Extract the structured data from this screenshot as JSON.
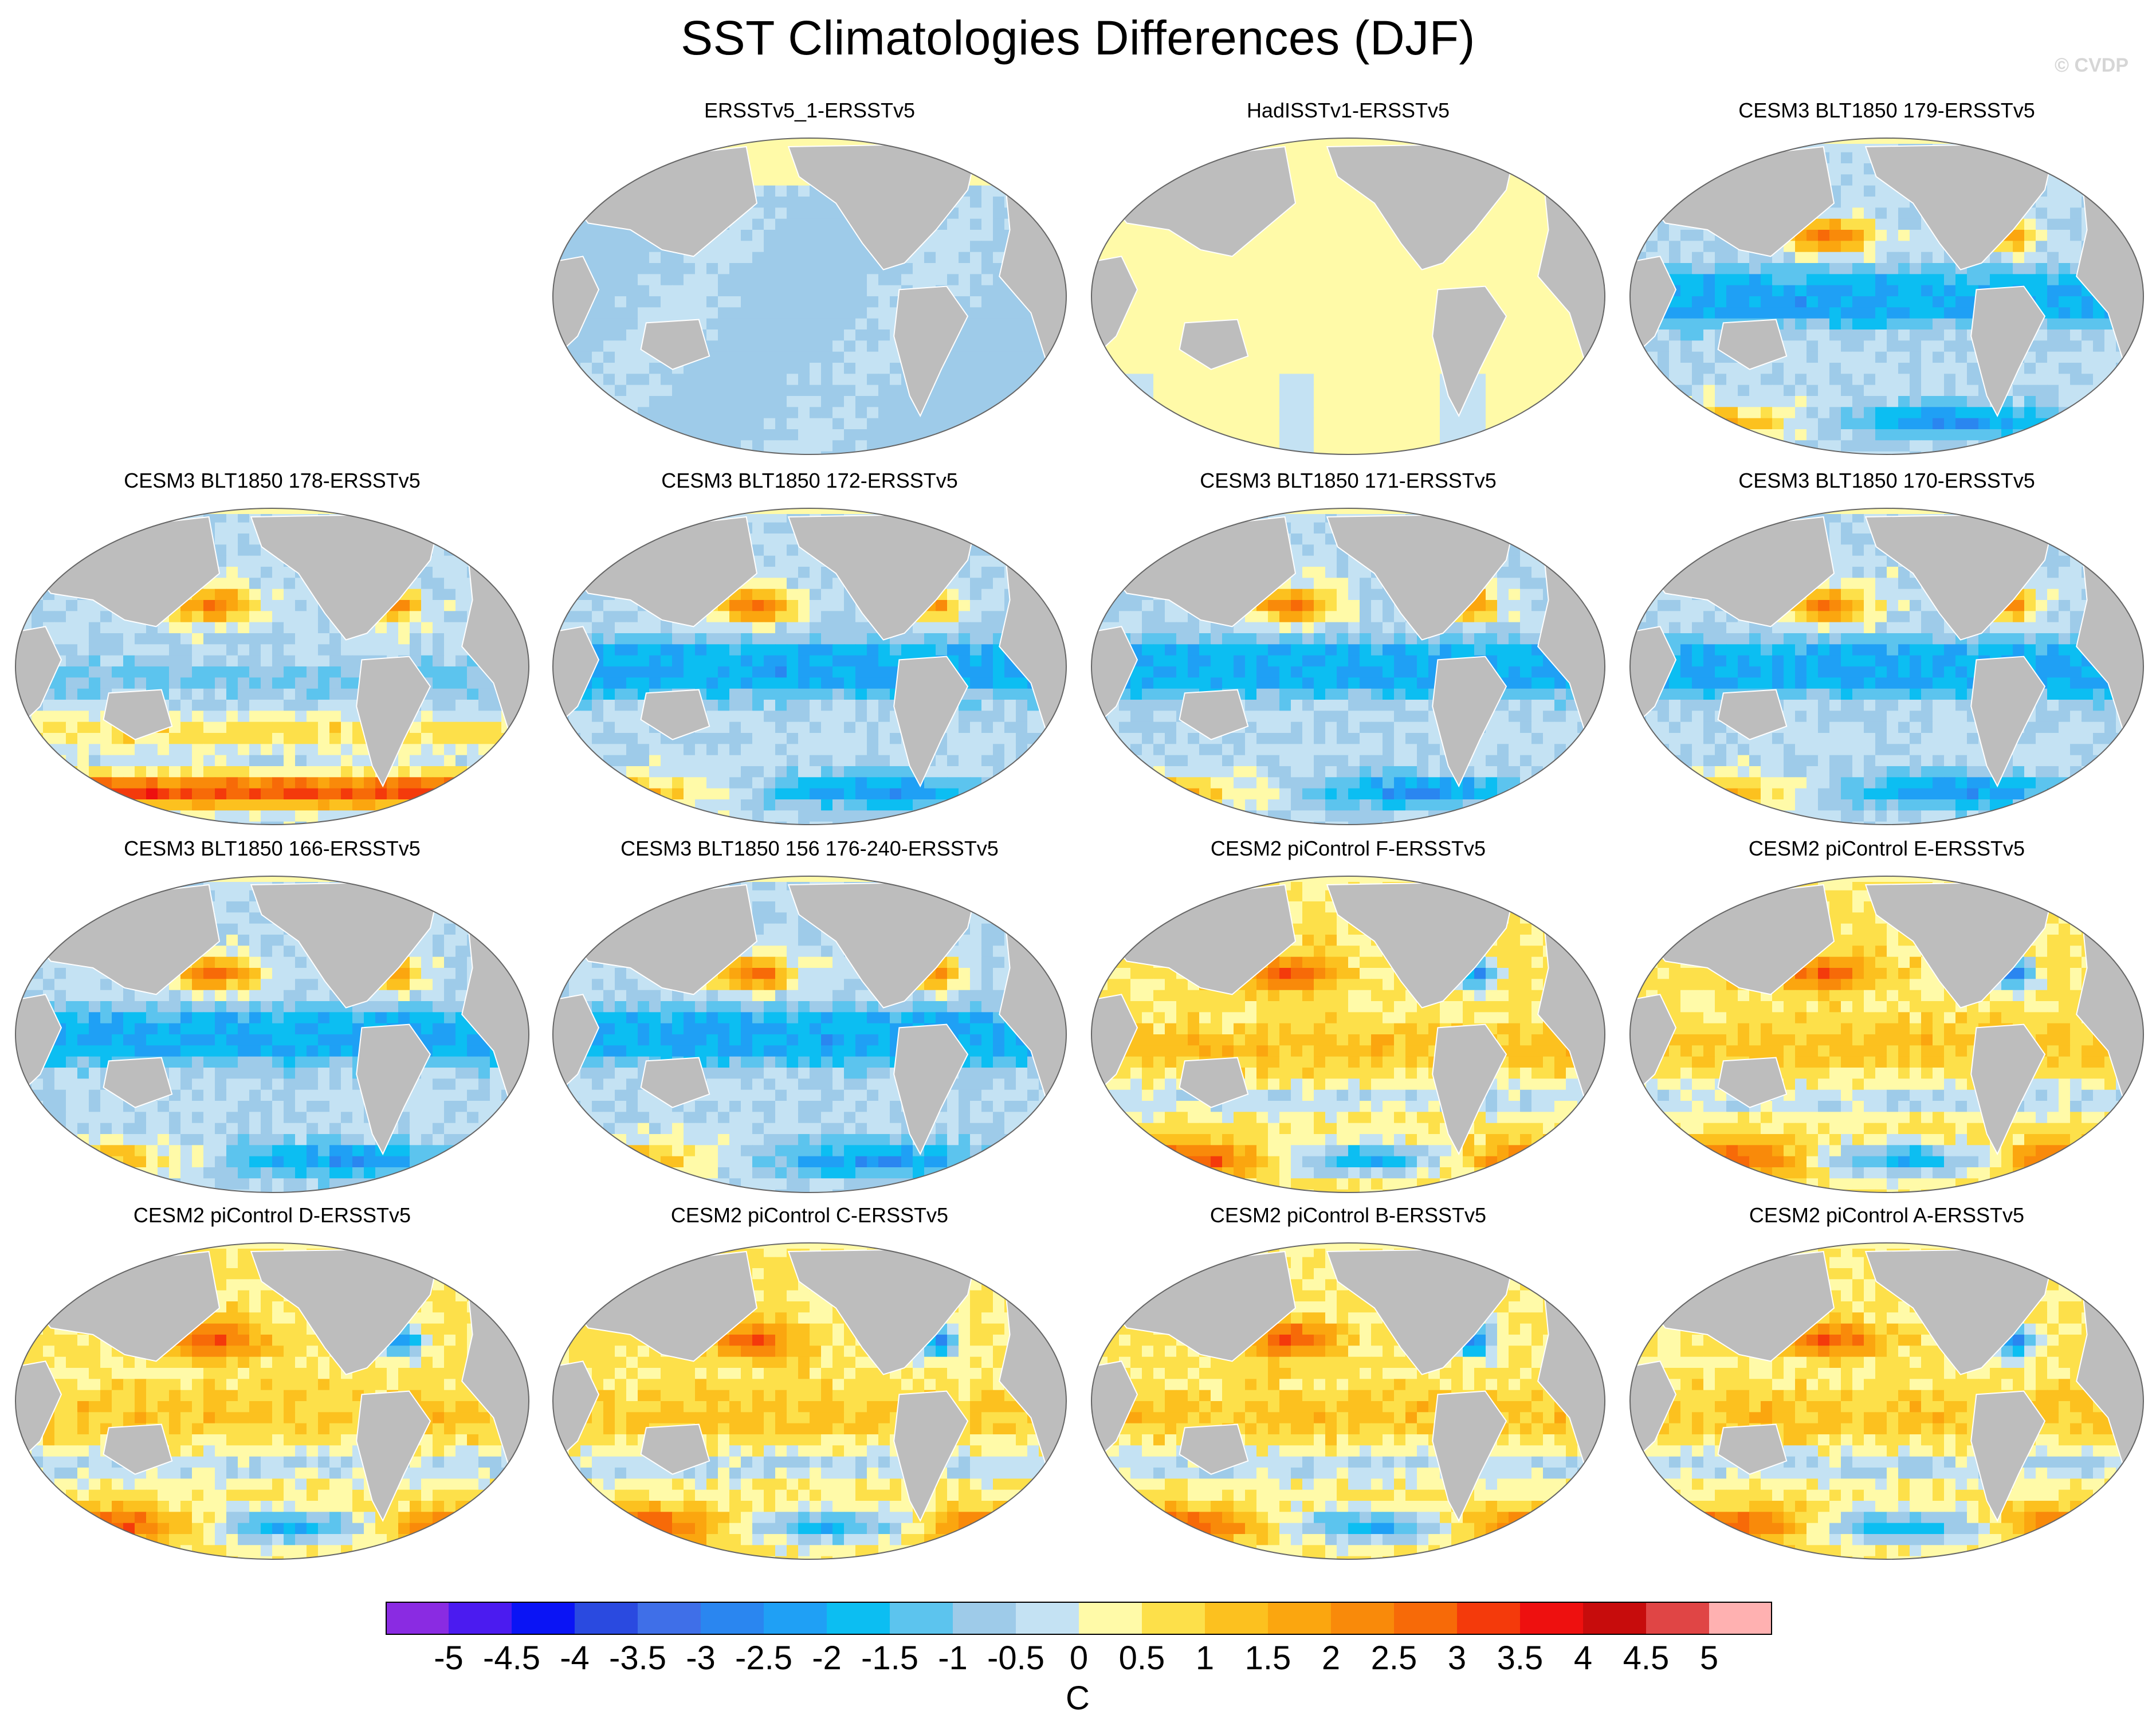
{
  "title": "SST Climatologies Differences (DJF)",
  "watermark": "© CVDP",
  "colors": {
    "land": "#bdbdbd",
    "ocean_outline": "#666666"
  },
  "panels": [
    {
      "title": "ERSSTv5_1-ERSSTv5",
      "mode": "cool_uniform"
    },
    {
      "title": "HadISSTv1-ERSSTv5",
      "mode": "warm_uniform"
    },
    {
      "title": "CESM3 BLT1850 179-ERSSTv5",
      "mode": "cesm3"
    },
    {
      "title": "CESM3 BLT1850 178-ERSSTv5",
      "mode": "cesm3_warm"
    },
    {
      "title": "CESM3 BLT1850 172-ERSSTv5",
      "mode": "cesm3"
    },
    {
      "title": "CESM3 BLT1850 171-ERSSTv5",
      "mode": "cesm3"
    },
    {
      "title": "CESM3 BLT1850 170-ERSSTv5",
      "mode": "cesm3"
    },
    {
      "title": "CESM3 BLT1850 166-ERSSTv5",
      "mode": "cesm3"
    },
    {
      "title": "CESM3 BLT1850 156 176-240-ERSSTv5",
      "mode": "cesm3"
    },
    {
      "title": "CESM2 piControl F-ERSSTv5",
      "mode": "cesm2"
    },
    {
      "title": "CESM2 piControl E-ERSSTv5",
      "mode": "cesm2"
    },
    {
      "title": "CESM2 piControl D-ERSSTv5",
      "mode": "cesm2"
    },
    {
      "title": "CESM2 piControl C-ERSSTv5",
      "mode": "cesm2"
    },
    {
      "title": "CESM2 piControl B-ERSSTv5",
      "mode": "cesm2"
    },
    {
      "title": "CESM2 piControl A-ERSSTv5",
      "mode": "cesm2"
    }
  ],
  "colorbar": {
    "labels": [
      "-5",
      "-4.5",
      "-4",
      "-3.5",
      "-3",
      "-2.5",
      "-2",
      "-1.5",
      "-1",
      "-0.5",
      "0",
      "0.5",
      "1",
      "1.5",
      "2",
      "2.5",
      "3",
      "3.5",
      "4",
      "4.5",
      "5"
    ],
    "colors": [
      "#8a2be2",
      "#4b1bf0",
      "#0a14f5",
      "#2a4ae0",
      "#3f6fe8",
      "#2a86f0",
      "#1fa0f5",
      "#0cbef2",
      "#5cc4ee",
      "#9ecbe9",
      "#c4e2f3",
      "#fffaa8",
      "#fde04a",
      "#fcc11f",
      "#fba60f",
      "#f98a0a",
      "#f76a08",
      "#f43a0b",
      "#ee100f",
      "#c70c0c",
      "#e04545",
      "#ffb1b1"
    ],
    "units": "C"
  }
}
